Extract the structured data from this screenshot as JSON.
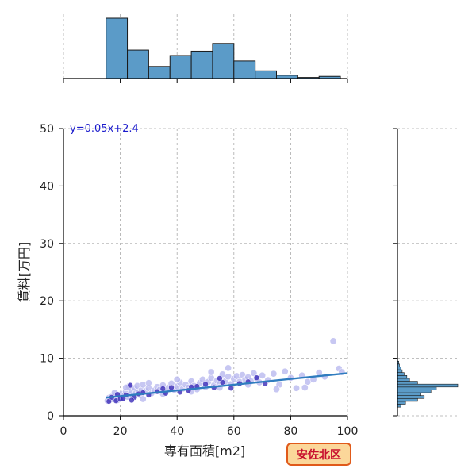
{
  "chart_data": {
    "type": "scatter",
    "xlabel": "専有面積[m2]",
    "ylabel": "賃料[万円]",
    "xlim": [
      0,
      100
    ],
    "ylim": [
      0,
      50
    ],
    "x_ticks": [
      0,
      20,
      40,
      60,
      80,
      100
    ],
    "y_ticks": [
      0,
      10,
      20,
      30,
      40,
      50
    ],
    "grid": true,
    "equation_label": "y=0.05x+2.4",
    "region_badge": "安佐北区",
    "regression": {
      "slope": 0.05,
      "intercept": 2.4,
      "x_range": [
        15,
        100
      ]
    },
    "colors": {
      "points_fill": "#b4b4ee",
      "points_dark": "#3a2bb8",
      "regression_line": "#2f7cbf",
      "histogram_fill": "#5b9bc8",
      "badge_bg": "#fbd79a",
      "badge_border": "#e05a1a",
      "badge_text": "#c8102e",
      "equation_text": "#1a1acc"
    },
    "marginal_x_histogram": {
      "bin_edges": [
        15,
        22.5,
        30,
        37.5,
        45,
        52.5,
        60,
        67.5,
        75,
        82.5,
        90,
        97.5
      ],
      "counts": [
        55,
        26,
        11,
        21,
        25,
        32,
        16,
        7,
        3,
        1,
        2
      ]
    },
    "marginal_y_histogram": {
      "bin_edges": [
        1.5,
        2.0,
        2.5,
        3.0,
        3.5,
        4.0,
        4.5,
        5.0,
        5.5,
        6.0,
        6.5,
        7.0,
        7.5,
        8.0,
        8.5,
        9.0,
        9.5
      ],
      "counts": [
        5,
        12,
        30,
        40,
        35,
        50,
        58,
        90,
        30,
        18,
        14,
        10,
        7,
        5,
        3,
        2
      ]
    },
    "points": [
      [
        15.5,
        2.6
      ],
      [
        16,
        3.1
      ],
      [
        16.5,
        2.8
      ],
      [
        17,
        3.3
      ],
      [
        17.5,
        2.9
      ],
      [
        18,
        3.4
      ],
      [
        18.5,
        3.0
      ],
      [
        19,
        2.7
      ],
      [
        19.5,
        3.5
      ],
      [
        20,
        3.2
      ],
      [
        20.5,
        3.8
      ],
      [
        21,
        3.1
      ],
      [
        21.5,
        3.6
      ],
      [
        22,
        4.2
      ],
      [
        22.5,
        3.3
      ],
      [
        23,
        5.1
      ],
      [
        23.5,
        3.7
      ],
      [
        24,
        4.4
      ],
      [
        24.5,
        3.5
      ],
      [
        25,
        4.8
      ],
      [
        25.5,
        3.9
      ],
      [
        26,
        5.2
      ],
      [
        26.5,
        4.1
      ],
      [
        27,
        3.6
      ],
      [
        27.5,
        4.5
      ],
      [
        28,
        5.4
      ],
      [
        29,
        4.3
      ],
      [
        30,
        4.8
      ],
      [
        31,
        3.9
      ],
      [
        32,
        4.4
      ],
      [
        33,
        5.0
      ],
      [
        34,
        4.6
      ],
      [
        35,
        5.3
      ],
      [
        36,
        4.2
      ],
      [
        37,
        4.9
      ],
      [
        38,
        5.6
      ],
      [
        39,
        4.5
      ],
      [
        40,
        5.1
      ],
      [
        41,
        5.8
      ],
      [
        42,
        4.7
      ],
      [
        43,
        5.4
      ],
      [
        44,
        4.9
      ],
      [
        45,
        6.0
      ],
      [
        46,
        5.2
      ],
      [
        47,
        4.6
      ],
      [
        48,
        5.7
      ],
      [
        49,
        6.3
      ],
      [
        50,
        5.0
      ],
      [
        51,
        5.9
      ],
      [
        52,
        6.6
      ],
      [
        53,
        5.3
      ],
      [
        54,
        6.1
      ],
      [
        55,
        5.6
      ],
      [
        56,
        7.2
      ],
      [
        57,
        6.0
      ],
      [
        58,
        6.8
      ],
      [
        59,
        5.5
      ],
      [
        60,
        6.4
      ],
      [
        61,
        6.9
      ],
      [
        62,
        5.9
      ],
      [
        63,
        7.1
      ],
      [
        64,
        6.3
      ],
      [
        65,
        6.7
      ],
      [
        66,
        6.0
      ],
      [
        67,
        7.4
      ],
      [
        68,
        6.5
      ],
      [
        69,
        5.8
      ],
      [
        70,
        7.0
      ],
      [
        72,
        6.2
      ],
      [
        74,
        7.3
      ],
      [
        76,
        5.4
      ],
      [
        78,
        7.7
      ],
      [
        80,
        6.6
      ],
      [
        82,
        4.8
      ],
      [
        84,
        7.0
      ],
      [
        86,
        5.9
      ],
      [
        88,
        6.3
      ],
      [
        90,
        7.5
      ],
      [
        92,
        6.8
      ],
      [
        95,
        13.0
      ],
      [
        97,
        8.2
      ],
      [
        98,
        7.6
      ],
      [
        28,
        2.9
      ],
      [
        35,
        3.8
      ],
      [
        45,
        4.2
      ],
      [
        55,
        4.9
      ],
      [
        65,
        5.4
      ],
      [
        75,
        4.6
      ],
      [
        85,
        4.9
      ],
      [
        58,
        8.3
      ],
      [
        52,
        7.6
      ],
      [
        40,
        6.3
      ],
      [
        30,
        5.7
      ],
      [
        22,
        4.9
      ],
      [
        18,
        4.0
      ]
    ],
    "dark_points": [
      [
        16,
        2.5
      ],
      [
        17,
        3.2
      ],
      [
        18.5,
        2.6
      ],
      [
        20,
        2.9
      ],
      [
        21,
        3.0
      ],
      [
        22,
        3.6
      ],
      [
        23.5,
        5.3
      ],
      [
        25,
        3.2
      ],
      [
        26.5,
        3.8
      ],
      [
        28,
        4.0
      ],
      [
        30,
        3.6
      ],
      [
        33,
        4.2
      ],
      [
        35,
        4.7
      ],
      [
        38,
        4.9
      ],
      [
        41,
        4.1
      ],
      [
        44,
        4.4
      ],
      [
        47,
        5.1
      ],
      [
        50,
        5.5
      ],
      [
        53,
        4.9
      ],
      [
        56,
        5.8
      ],
      [
        59,
        4.8
      ],
      [
        62,
        5.6
      ],
      [
        65,
        5.9
      ],
      [
        68,
        6.6
      ],
      [
        71,
        5.6
      ],
      [
        55,
        6.5
      ],
      [
        45,
        5.0
      ],
      [
        36,
        3.9
      ],
      [
        24,
        2.7
      ],
      [
        19,
        3.7
      ]
    ]
  }
}
